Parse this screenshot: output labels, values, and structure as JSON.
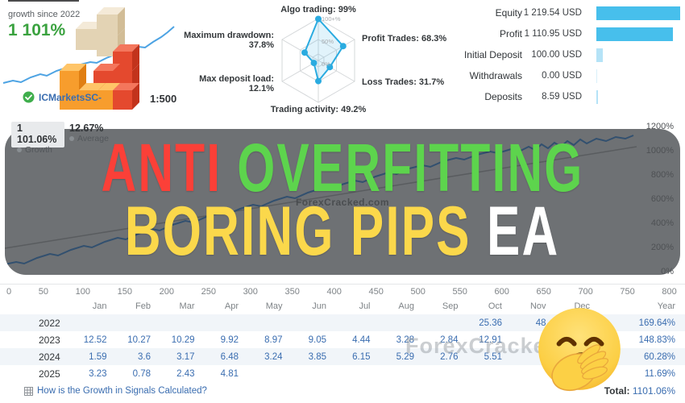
{
  "colors": {
    "green": "#3aa23f",
    "link": "#3a6db0",
    "radar": "#2aabe0",
    "banner": "#6e7174",
    "red": "#fb4038",
    "grn": "#5dd44d",
    "yel": "#fbd84b"
  },
  "watermark": "ForexCracked.com",
  "top": {
    "growth_card": {
      "caption": "growth since 2022",
      "value": "1 101%",
      "broker": "ICMarketsSC-",
      "leverage": "1:500"
    },
    "radar": {
      "metrics": [
        {
          "label": "Algo trading:",
          "value": "99%"
        },
        {
          "label": "Profit Trades:",
          "value": "68.3%"
        },
        {
          "label": "Loss Trades:",
          "value": "31.7%"
        },
        {
          "label": "Trading activity:",
          "value": "49.2%"
        },
        {
          "label": "Max deposit load:",
          "value": "12.1%"
        },
        {
          "label": "Maximum drawdown:",
          "value": "37.8%"
        }
      ],
      "rings": [
        "100+%",
        "50%",
        "0%"
      ]
    },
    "account": {
      "rows": [
        {
          "label": "Equity",
          "value": "1 219.54 USD",
          "bar_pct": 100,
          "bar_color": "#47bfec"
        },
        {
          "label": "Profit",
          "value": "1 110.95 USD",
          "bar_pct": 91,
          "bar_color": "#47bfec"
        },
        {
          "label": "Initial Deposit",
          "value": "100.00 USD",
          "bar_pct": 8,
          "bar_color": "#b5e3f7"
        },
        {
          "label": "Withdrawals",
          "value": "0.00 USD",
          "bar_pct": 0.8,
          "bar_color": "#d9f0fa"
        },
        {
          "label": "Deposits",
          "value": "8.59 USD",
          "bar_pct": 2,
          "bar_color": "#b5e3f7"
        }
      ]
    }
  },
  "banner": {
    "word_anti": "ANTI",
    "word_overfitting": "OVERFITTING",
    "word_boring": "BORING PIPS",
    "word_ea": "EA",
    "chip1_value": "1 101.06%",
    "chip1_label": "Growth",
    "chip2_value": "12.67%",
    "chip2_label": "Average"
  },
  "growth_chart": {
    "y_ticks": [
      "1200%",
      "1000%",
      "800%",
      "600%",
      "400%",
      "200%",
      "0%"
    ],
    "x_ticks": [
      "0",
      "50",
      "100",
      "150",
      "200",
      "250",
      "300",
      "350",
      "400",
      "450",
      "500",
      "550",
      "600",
      "650",
      "700",
      "750",
      "800"
    ]
  },
  "table": {
    "months": [
      "Jan",
      "Feb",
      "Mar",
      "Apr",
      "May",
      "Jun",
      "Jul",
      "Aug",
      "Sep",
      "Oct",
      "Nov",
      "Dec"
    ],
    "year_col": "Year",
    "rows": [
      {
        "year": "2022",
        "cells": [
          "",
          "",
          "",
          "",
          "",
          "",
          "",
          "",
          "",
          "25.36",
          "48",
          ""
        ],
        "total": "169.64%"
      },
      {
        "year": "2023",
        "cells": [
          "12.52",
          "10.27",
          "10.29",
          "9.92",
          "8.97",
          "9.05",
          "4.44",
          "3.28",
          "2.84",
          "12.91",
          "",
          ""
        ],
        "total": "148.83%"
      },
      {
        "year": "2024",
        "cells": [
          "1.59",
          "3.6",
          "3.17",
          "6.48",
          "3.24",
          "3.85",
          "6.15",
          "5.29",
          "2.76",
          "5.51",
          "",
          ""
        ],
        "total": "60.28%"
      },
      {
        "year": "2025",
        "cells": [
          "3.23",
          "0.78",
          "2.43",
          "4.81",
          "",
          "",
          "",
          "",
          "",
          "",
          "",
          ""
        ],
        "total": "11.69%"
      }
    ],
    "link": "How is the Growth in Signals Calculated?",
    "total_label": "Total:",
    "total_value": "1101.06%"
  }
}
